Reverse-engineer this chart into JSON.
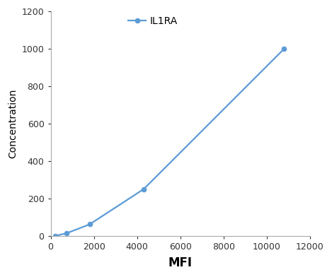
{
  "x": [
    200,
    750,
    1800,
    4300,
    10800
  ],
  "y": [
    0,
    15,
    62,
    250,
    1000
  ],
  "line_color": "#5b9bd5",
  "marker": "o",
  "marker_color": "#5b9bd5",
  "marker_size": 5,
  "linewidth": 1.6,
  "xlabel": "MFI",
  "ylabel": "Concentration",
  "xlabel_fontsize": 12,
  "ylabel_fontsize": 10,
  "xlabel_fontweight": "bold",
  "ylabel_fontweight": "normal",
  "legend_label": "IL1RA",
  "xlim": [
    0,
    12000
  ],
  "ylim": [
    0,
    1200
  ],
  "xticks": [
    0,
    2000,
    4000,
    6000,
    8000,
    10000,
    12000
  ],
  "yticks": [
    0,
    200,
    400,
    600,
    800,
    1000,
    1200
  ],
  "tick_fontsize": 9,
  "background_color": "#ffffff",
  "legend_fontsize": 10,
  "spine_color": "#aaaaaa"
}
